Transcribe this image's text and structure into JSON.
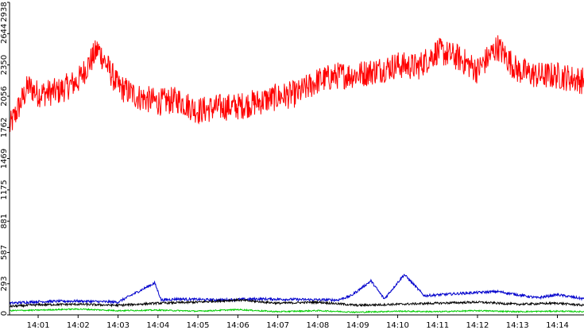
{
  "chart_data": {
    "type": "line",
    "title": "",
    "xlabel": "",
    "ylabel": "",
    "ylim": [
      0,
      2938
    ],
    "y_ticks": [
      0,
      293,
      587,
      881,
      1175,
      1469,
      1762,
      2056,
      2350,
      2644,
      2938
    ],
    "y_tick_orientation": "rotated-90",
    "x_ticks": [
      "14:01",
      "14:02",
      "14:03",
      "14:04",
      "14:05",
      "14:06",
      "14:07",
      "14:08",
      "14:09",
      "14:10",
      "14:11",
      "14:12",
      "14:13",
      "14:14"
    ],
    "x_range": [
      "14:00:17",
      "14:14:40"
    ],
    "grid": false,
    "legend": "none",
    "series": [
      {
        "color": "#ff0000",
        "x": [
          "14:00:17",
          "14:00:45",
          "14:01:00",
          "14:01:30",
          "14:02:00",
          "14:02:30",
          "14:03:00",
          "14:03:30",
          "14:04:00",
          "14:04:30",
          "14:05:00",
          "14:05:30",
          "14:06:00",
          "14:06:30",
          "14:07:00",
          "14:07:30",
          "14:08:00",
          "14:08:30",
          "14:09:00",
          "14:09:30",
          "14:10:00",
          "14:10:30",
          "14:11:00",
          "14:11:30",
          "14:12:00",
          "14:12:30",
          "14:13:00",
          "14:13:30",
          "14:14:00",
          "14:14:40"
        ],
        "values": [
          1762,
          2150,
          2080,
          2100,
          2200,
          2500,
          2150,
          2050,
          2000,
          2020,
          1920,
          1950,
          1960,
          2000,
          2050,
          2080,
          2200,
          2250,
          2260,
          2300,
          2350,
          2330,
          2480,
          2420,
          2300,
          2520,
          2300,
          2250,
          2250,
          2200
        ]
      },
      {
        "color": "#0000cc",
        "x": [
          "14:00:17",
          "14:01:00",
          "14:02:00",
          "14:03:00",
          "14:03:55",
          "14:04:05",
          "14:04:30",
          "14:05:30",
          "14:06:30",
          "14:07:30",
          "14:08:30",
          "14:08:50",
          "14:09:20",
          "14:09:40",
          "14:10:10",
          "14:10:40",
          "14:11:30",
          "14:12:30",
          "14:13:30",
          "14:14:00",
          "14:14:40"
        ],
        "values": [
          110,
          125,
          130,
          120,
          300,
          140,
          150,
          140,
          150,
          145,
          140,
          180,
          320,
          150,
          380,
          180,
          200,
          220,
          160,
          190,
          150
        ]
      },
      {
        "color": "#000000",
        "x": [
          "14:00:17",
          "14:01:00",
          "14:02:00",
          "14:03:00",
          "14:04:00",
          "14:05:00",
          "14:06:00",
          "14:07:00",
          "14:08:00",
          "14:09:00",
          "14:10:00",
          "14:11:00",
          "14:12:00",
          "14:13:00",
          "14:14:00",
          "14:14:40"
        ],
        "values": [
          80,
          95,
          100,
          90,
          110,
          120,
          140,
          110,
          120,
          90,
          100,
          110,
          120,
          100,
          110,
          90
        ]
      },
      {
        "color": "#00cc00",
        "x": [
          "14:00:17",
          "14:01:00",
          "14:02:00",
          "14:03:00",
          "14:04:00",
          "14:05:00",
          "14:06:00",
          "14:07:00",
          "14:08:00",
          "14:09:00",
          "14:10:00",
          "14:11:00",
          "14:12:00",
          "14:13:00",
          "14:14:00",
          "14:14:40"
        ],
        "values": [
          40,
          45,
          55,
          40,
          45,
          35,
          50,
          30,
          40,
          25,
          35,
          30,
          40,
          30,
          35,
          30
        ]
      }
    ]
  }
}
